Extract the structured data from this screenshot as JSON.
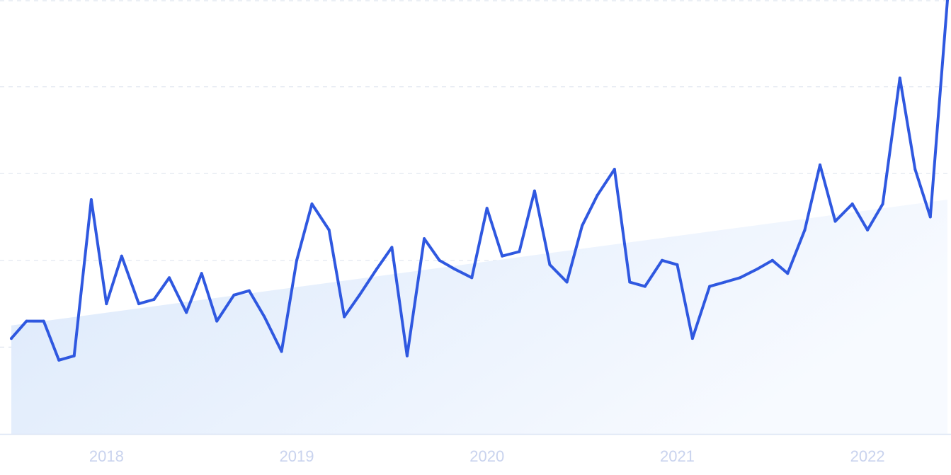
{
  "chart_data": {
    "type": "line",
    "title": "",
    "xlabel": "",
    "ylabel": "",
    "x_tick_labels": [
      "2018",
      "2019",
      "2020",
      "2021",
      "2022"
    ],
    "x_ticks": [
      2018,
      2019,
      2020,
      2021,
      2022
    ],
    "xlim": [
      2017.5,
      2022.42
    ],
    "ylim": [
      0,
      100
    ],
    "grid": true,
    "legend": "none",
    "colors": {
      "line": "#2f58e0",
      "trend_fill_top": "#dce9fb",
      "trend_fill_bottom": "#f7faff",
      "grid": "#dfe5ef",
      "tick_label": "#c9d3ee"
    },
    "series": [
      {
        "x": [
          2017.5,
          2017.58,
          2017.67,
          2017.75,
          2017.83,
          2017.92,
          2018,
          2018.08,
          2018.17,
          2018.25,
          2018.33,
          2018.42,
          2018.5,
          2018.58,
          2018.67,
          2018.75,
          2018.83,
          2018.92,
          2019,
          2019.08,
          2019.17,
          2019.25,
          2019.33,
          2019.42,
          2019.5,
          2019.58,
          2019.67,
          2019.75,
          2019.83,
          2019.92,
          2020,
          2020.08,
          2020.17,
          2020.25,
          2020.33,
          2020.42,
          2020.5,
          2020.58,
          2020.67,
          2020.75,
          2020.83,
          2020.92,
          2021,
          2021.08,
          2021.17,
          2021.25,
          2021.33,
          2021.42,
          2021.5,
          2021.58,
          2021.67,
          2021.75,
          2021.83,
          2021.92,
          2022,
          2022.08,
          2022.17,
          2022.25,
          2022.33,
          2022.42
        ],
        "values": [
          22,
          26,
          26,
          17,
          18,
          54,
          30,
          41,
          30,
          31,
          36,
          28,
          37,
          26,
          32,
          33,
          27,
          19,
          40,
          53,
          47,
          27,
          32,
          38,
          43,
          18,
          45,
          40,
          38,
          36,
          52,
          41,
          42,
          56,
          39,
          35,
          48,
          55,
          61,
          35,
          34,
          40,
          39,
          22,
          34,
          35,
          36,
          38,
          40,
          37,
          47,
          62,
          49,
          53,
          47,
          53,
          82,
          61,
          50,
          100
        ]
      }
    ],
    "trend": {
      "start": 25,
      "end": 54
    }
  }
}
